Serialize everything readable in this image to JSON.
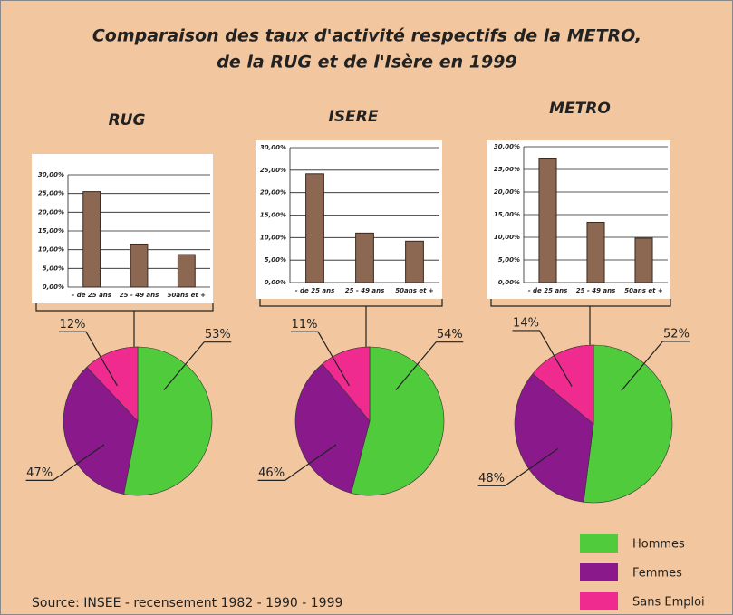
{
  "header": {
    "title": [
      "Comparaison des taux d'activité respectifs de la METRO,",
      "de la  RUG et de l'Isère en 1999"
    ]
  },
  "source": "Source:  INSEE - recensement 1982 - 1990 - 1999",
  "legend": [
    {
      "name": "Hommes",
      "color": "#4fcb3c"
    },
    {
      "name": "Femmes",
      "color": "#8a1a8c"
    },
    {
      "name": "Sans Emploi",
      "color": "#ef2b8f"
    }
  ],
  "chart_data": [
    {
      "type": "bar",
      "title": "RUG",
      "categories": [
        "- de 25 ans",
        "25 - 49 ans",
        "50ans et +"
      ],
      "values": [
        25.5,
        11.5,
        8.7
      ],
      "color": "#8c6752",
      "ylim": [
        0,
        30
      ],
      "yticks": [
        {
          "value": 0,
          "label": "0,00%"
        },
        {
          "value": 5,
          "label": "5,00%"
        },
        {
          "value": 10,
          "label": "10,00%"
        },
        {
          "value": 15,
          "label": "15,00%"
        },
        {
          "value": 20,
          "label": "20,00%"
        },
        {
          "value": 25,
          "label": "25,00%"
        },
        {
          "value": 30,
          "label": "30,00%"
        }
      ],
      "grid": true
    },
    {
      "type": "pie",
      "values": [
        53,
        47,
        12
      ],
      "value_labels": [
        "53%",
        "47%",
        "12%"
      ],
      "colors": [
        "#4fcb3c",
        "#8a1a8c",
        "#ef2b8f"
      ]
    },
    {
      "type": "bar",
      "title": "ISERE",
      "categories": [
        "- de 25 ans",
        "25 - 49 ans",
        "50ans et +"
      ],
      "values": [
        24.2,
        11,
        9.2
      ],
      "color": "#8c6752",
      "ylim": [
        0,
        30
      ],
      "yticks": [
        {
          "value": 0,
          "label": "0,00%"
        },
        {
          "value": 5,
          "label": "5,00%"
        },
        {
          "value": 10,
          "label": "10,00%"
        },
        {
          "value": 15,
          "label": "15,00%"
        },
        {
          "value": 20,
          "label": "20,00%"
        },
        {
          "value": 25,
          "label": "25,00%"
        },
        {
          "value": 30,
          "label": "30,00%"
        }
      ],
      "grid": true
    },
    {
      "type": "pie",
      "values": [
        54,
        46,
        11
      ],
      "value_labels": [
        "54%",
        "46%",
        "11%"
      ],
      "colors": [
        "#4fcb3c",
        "#8a1a8c",
        "#ef2b8f"
      ]
    },
    {
      "type": "bar",
      "title": "METRO",
      "categories": [
        "- de 25 ans",
        "25 - 49 ans",
        "50ans et +"
      ],
      "values": [
        27.5,
        13.3,
        9.8
      ],
      "color": "#8c6752",
      "ylim": [
        0,
        30
      ],
      "yticks": [
        {
          "value": 0,
          "label": "0,00%"
        },
        {
          "value": 5,
          "label": "5,00%"
        },
        {
          "value": 10,
          "label": "10,00%"
        },
        {
          "value": 15,
          "label": "15,00%"
        },
        {
          "value": 20,
          "label": "20,00%"
        },
        {
          "value": 25,
          "label": "25,00%"
        },
        {
          "value": 30,
          "label": "30,00%"
        }
      ],
      "grid": true
    },
    {
      "type": "pie",
      "values": [
        52,
        48,
        14
      ],
      "value_labels": [
        "52%",
        "48%",
        "14%"
      ],
      "colors": [
        "#4fcb3c",
        "#8a1a8c",
        "#ef2b8f"
      ]
    }
  ]
}
